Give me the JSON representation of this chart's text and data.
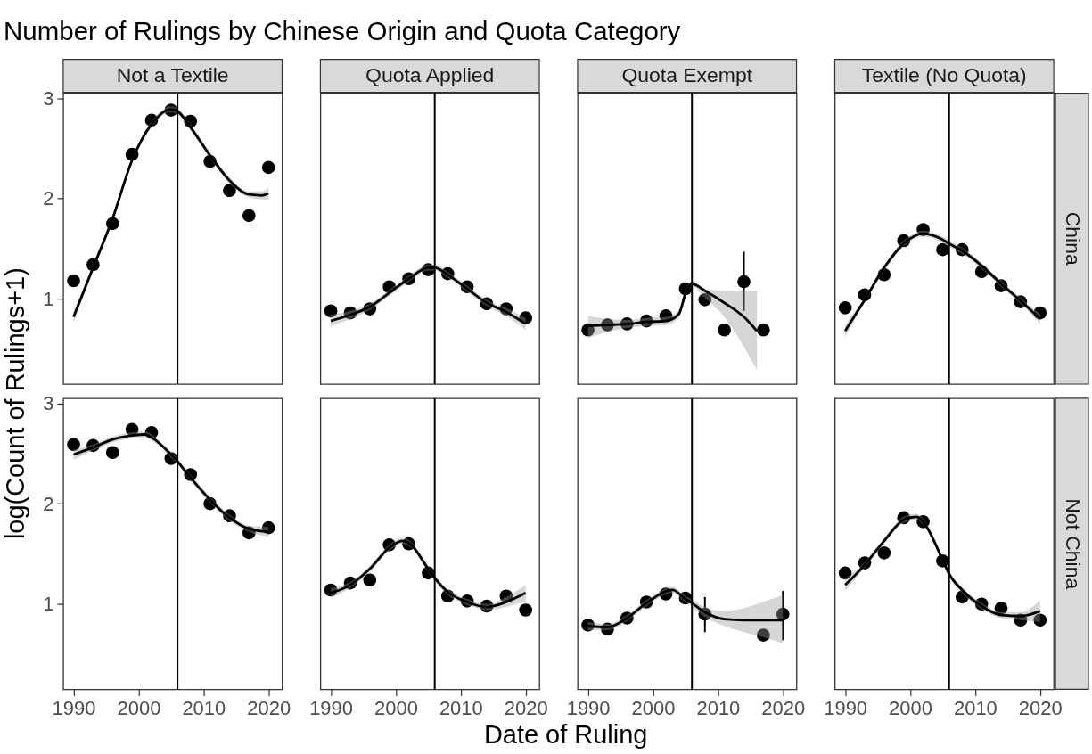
{
  "chart_data": [
    {
      "type": "scatter",
      "title": "Number of Rulings by Chinese Origin and Quota Category",
      "ylabel": "log(Count of Rulings+1)",
      "subtitle": "Not a Textile",
      "xlim": [
        1988.4,
        2022.1
      ],
      "xticks": [
        1990,
        2000,
        2010,
        2020
      ],
      "ylim": [
        0.15,
        3.05
      ],
      "yticks": [
        1,
        2,
        3
      ],
      "tick_labels": "y",
      "ref_lines": [
        {
          "axis": "x",
          "value": 2006,
          "color": "#000000"
        }
      ],
      "series": [
        {
          "type": "scatter",
          "marker": "circle",
          "color": "#000000",
          "x": [
            1990,
            1993,
            1996,
            1999,
            2002,
            2005,
            2008,
            2011,
            2014,
            2017,
            2020
          ],
          "values": [
            1.18,
            1.34,
            1.75,
            2.44,
            2.78,
            2.88,
            2.77,
            2.37,
            2.08,
            1.83,
            2.31
          ]
        },
        {
          "type": "line",
          "marker": "none",
          "color": "#000000",
          "x": [
            1990,
            1993,
            1996,
            1999,
            2002,
            2005,
            2006,
            2008,
            2011,
            2014,
            2017,
            2019,
            2020
          ],
          "values": [
            0.82,
            1.31,
            1.8,
            2.38,
            2.74,
            2.89,
            2.87,
            2.71,
            2.43,
            2.18,
            2.04,
            2.03,
            2.05
          ],
          "lower": [
            0.76,
            1.27,
            1.77,
            2.35,
            2.71,
            2.86,
            2.84,
            2.68,
            2.4,
            2.15,
            2.01,
            1.99,
            1.99
          ],
          "upper": [
            0.88,
            1.35,
            1.83,
            2.41,
            2.77,
            2.92,
            2.9,
            2.74,
            2.46,
            2.21,
            2.07,
            2.07,
            2.11
          ]
        }
      ]
    },
    {
      "type": "scatter",
      "subtitle": "Quota Applied",
      "xlim": [
        1988.4,
        2022.1
      ],
      "xticks": [
        1990,
        2000,
        2010,
        2020
      ],
      "ylim": [
        0.15,
        3.05
      ],
      "yticks": [
        1,
        2,
        3
      ],
      "tick_labels": false,
      "ref_lines": [
        {
          "axis": "x",
          "value": 2006,
          "color": "#000000"
        }
      ],
      "series": [
        {
          "type": "scatter",
          "marker": "circle",
          "color": "#000000",
          "x": [
            1990,
            1993,
            1996,
            1999,
            2002,
            2005,
            2008,
            2011,
            2014,
            2017,
            2020
          ],
          "values": [
            0.88,
            0.86,
            0.9,
            1.12,
            1.2,
            1.29,
            1.25,
            1.12,
            0.95,
            0.9,
            0.81
          ]
        },
        {
          "type": "line",
          "marker": "none",
          "color": "#000000",
          "x": [
            1990,
            1993,
            1996,
            1999,
            2002,
            2005,
            2006,
            2008,
            2011,
            2014,
            2017,
            2020
          ],
          "values": [
            0.78,
            0.84,
            0.92,
            1.06,
            1.2,
            1.31,
            1.31,
            1.24,
            1.1,
            0.96,
            0.87,
            0.75
          ],
          "lower": [
            0.72,
            0.8,
            0.89,
            1.03,
            1.17,
            1.28,
            1.28,
            1.21,
            1.07,
            0.93,
            0.83,
            0.69
          ],
          "upper": [
            0.84,
            0.88,
            0.95,
            1.09,
            1.23,
            1.34,
            1.34,
            1.27,
            1.13,
            0.99,
            0.91,
            0.81
          ]
        }
      ]
    },
    {
      "type": "scatter",
      "subtitle": "Quota Exempt",
      "xlim": [
        1988.4,
        2022.1
      ],
      "xticks": [
        1990,
        2000,
        2010,
        2020
      ],
      "ylim": [
        0.15,
        3.05
      ],
      "yticks": [
        1,
        2,
        3
      ],
      "tick_labels": false,
      "ref_lines": [
        {
          "axis": "x",
          "value": 2006,
          "color": "#000000"
        }
      ],
      "series": [
        {
          "type": "scatter",
          "marker": "circle",
          "color": "#000000",
          "x": [
            1990,
            1993,
            1996,
            1999,
            2002,
            2005,
            2008,
            2011,
            2014,
            2017
          ],
          "values": [
            0.69,
            0.74,
            0.75,
            0.78,
            0.83,
            1.1,
            0.99,
            0.69,
            1.17,
            0.69
          ],
          "errors": [
            null,
            null,
            null,
            null,
            null,
            null,
            null,
            null,
            [
              0.88,
              1.47
            ],
            null
          ]
        },
        {
          "type": "line",
          "marker": "none",
          "color": "#000000",
          "x": [
            1990,
            1993,
            1996,
            1999,
            2002,
            2004,
            2005,
            2006,
            2008,
            2011,
            2014,
            2016
          ],
          "values": [
            0.73,
            0.74,
            0.75,
            0.77,
            0.78,
            0.85,
            1.05,
            1.15,
            1.08,
            0.96,
            0.82,
            0.68
          ],
          "lower": [
            0.61,
            0.67,
            0.71,
            0.73,
            0.74,
            0.81,
            1.01,
            1.12,
            1.01,
            0.82,
            0.52,
            0.29
          ],
          "upper": [
            0.83,
            0.8,
            0.79,
            0.81,
            0.82,
            0.89,
            1.09,
            1.18,
            1.1,
            1.08,
            1.08,
            1.08
          ]
        }
      ]
    },
    {
      "type": "scatter",
      "subtitle": "Textile (No Quota)",
      "y2label": "China",
      "xlim": [
        1988.4,
        2022.1
      ],
      "xticks": [
        1990,
        2000,
        2010,
        2020
      ],
      "ylim": [
        0.15,
        3.05
      ],
      "yticks": [
        1,
        2,
        3
      ],
      "tick_labels": false,
      "ref_lines": [
        {
          "axis": "x",
          "value": 2006,
          "color": "#000000"
        }
      ],
      "series": [
        {
          "type": "scatter",
          "marker": "circle",
          "color": "#000000",
          "x": [
            1990,
            1993,
            1996,
            1999,
            2002,
            2005,
            2008,
            2011,
            2014,
            2017,
            2020
          ],
          "values": [
            0.91,
            1.04,
            1.24,
            1.58,
            1.69,
            1.49,
            1.49,
            1.27,
            1.13,
            0.97,
            0.86
          ]
        },
        {
          "type": "line",
          "marker": "none",
          "color": "#000000",
          "x": [
            1990,
            1993,
            1996,
            1999,
            2002,
            2005,
            2006,
            2008,
            2011,
            2014,
            2017,
            2020
          ],
          "values": [
            0.68,
            0.99,
            1.31,
            1.55,
            1.65,
            1.59,
            1.55,
            1.48,
            1.33,
            1.15,
            0.98,
            0.8
          ],
          "lower": [
            0.62,
            0.96,
            1.28,
            1.52,
            1.62,
            1.56,
            1.52,
            1.45,
            1.3,
            1.12,
            0.95,
            0.75
          ],
          "upper": [
            0.74,
            1.02,
            1.34,
            1.58,
            1.68,
            1.62,
            1.58,
            1.51,
            1.36,
            1.18,
            1.01,
            0.85
          ]
        }
      ]
    },
    {
      "type": "scatter",
      "xlim": [
        1988.4,
        2022.1
      ],
      "xticks": [
        1990,
        2000,
        2010,
        2020
      ],
      "ylim": [
        0.15,
        3.05
      ],
      "yticks": [
        1,
        2,
        3
      ],
      "ref_lines": [
        {
          "axis": "x",
          "value": 2006,
          "color": "#000000"
        }
      ],
      "series": [
        {
          "type": "scatter",
          "marker": "circle",
          "color": "#000000",
          "x": [
            1990,
            1993,
            1996,
            1999,
            2002,
            2005,
            2008,
            2011,
            2014,
            2017,
            2020
          ],
          "values": [
            2.59,
            2.58,
            2.51,
            2.74,
            2.71,
            2.45,
            2.29,
            2.0,
            1.88,
            1.71,
            1.76
          ]
        },
        {
          "type": "line",
          "marker": "none",
          "color": "#000000",
          "x": [
            1990,
            1993,
            1996,
            1999,
            2001,
            2002,
            2005,
            2006,
            2008,
            2011,
            2014,
            2017,
            2020
          ],
          "values": [
            2.49,
            2.56,
            2.64,
            2.68,
            2.69,
            2.66,
            2.49,
            2.42,
            2.26,
            2.04,
            1.86,
            1.75,
            1.72
          ],
          "lower": [
            2.44,
            2.53,
            2.61,
            2.65,
            2.66,
            2.63,
            2.46,
            2.39,
            2.23,
            2.01,
            1.83,
            1.72,
            1.67
          ],
          "upper": [
            2.54,
            2.59,
            2.67,
            2.71,
            2.72,
            2.69,
            2.52,
            2.45,
            2.29,
            2.07,
            1.89,
            1.78,
            1.77
          ]
        }
      ]
    },
    {
      "type": "scatter",
      "xlim": [
        1988.4,
        2022.1
      ],
      "xticks": [
        1990,
        2000,
        2010,
        2020
      ],
      "ylim": [
        0.15,
        3.05
      ],
      "yticks": [
        1,
        2,
        3
      ],
      "tick_labels": "x",
      "ref_lines": [
        {
          "axis": "x",
          "value": 2006,
          "color": "#000000"
        }
      ],
      "series": [
        {
          "type": "scatter",
          "marker": "circle",
          "color": "#000000",
          "x": [
            1990,
            1993,
            1996,
            1999,
            2002,
            2005,
            2008,
            2011,
            2014,
            2017,
            2020
          ],
          "values": [
            1.14,
            1.21,
            1.24,
            1.59,
            1.6,
            1.31,
            1.08,
            1.03,
            0.98,
            1.08,
            0.94
          ]
        },
        {
          "type": "line",
          "marker": "none",
          "color": "#000000",
          "x": [
            1990,
            1993,
            1996,
            1999,
            2001,
            2002,
            2005,
            2006,
            2008,
            2011,
            2014,
            2017,
            2020
          ],
          "values": [
            1.11,
            1.19,
            1.35,
            1.56,
            1.63,
            1.61,
            1.35,
            1.26,
            1.12,
            1.02,
            0.97,
            1.02,
            1.11
          ],
          "lower": [
            1.06,
            1.16,
            1.32,
            1.53,
            1.6,
            1.58,
            1.32,
            1.23,
            1.09,
            0.99,
            0.94,
            0.97,
            1.03
          ],
          "upper": [
            1.16,
            1.22,
            1.38,
            1.59,
            1.66,
            1.64,
            1.38,
            1.29,
            1.15,
            1.05,
            1.0,
            1.07,
            1.19
          ]
        }
      ]
    },
    {
      "type": "scatter",
      "xlabel": "Date of Ruling",
      "xlim": [
        1988.4,
        2022.1
      ],
      "xticks": [
        1990,
        2000,
        2010,
        2020
      ],
      "ylim": [
        0.15,
        3.05
      ],
      "yticks": [
        1,
        2,
        3
      ],
      "tick_labels": "x",
      "ref_lines": [
        {
          "axis": "x",
          "value": 2006,
          "color": "#000000"
        }
      ],
      "series": [
        {
          "type": "scatter",
          "marker": "circle",
          "color": "#000000",
          "x": [
            1990,
            1993,
            1996,
            1999,
            2002,
            2005,
            2008,
            2017,
            2020
          ],
          "values": [
            0.79,
            0.75,
            0.86,
            1.02,
            1.1,
            1.06,
            0.9,
            0.69,
            0.9
          ],
          "errors": [
            null,
            null,
            null,
            null,
            null,
            null,
            [
              0.72,
              1.07
            ],
            null,
            [
              0.64,
              1.13
            ]
          ]
        },
        {
          "type": "line",
          "marker": "none",
          "color": "#000000",
          "x": [
            1990,
            1993,
            1996,
            1999,
            2003,
            2005,
            2006,
            2008,
            2011,
            2014,
            2017,
            2020
          ],
          "values": [
            0.78,
            0.77,
            0.86,
            1.01,
            1.14,
            1.05,
            1.01,
            0.92,
            0.85,
            0.84,
            0.84,
            0.84
          ],
          "lower": [
            0.74,
            0.74,
            0.83,
            0.98,
            1.11,
            1.02,
            0.97,
            0.87,
            0.78,
            0.72,
            0.67,
            0.61
          ],
          "upper": [
            0.82,
            0.8,
            0.89,
            1.04,
            1.17,
            1.08,
            1.05,
            0.97,
            0.93,
            0.96,
            1.02,
            1.09
          ]
        }
      ]
    },
    {
      "type": "scatter",
      "y2label": "Not China",
      "xlim": [
        1988.4,
        2022.1
      ],
      "xticks": [
        1990,
        2000,
        2010,
        2020
      ],
      "ylim": [
        0.15,
        3.05
      ],
      "yticks": [
        1,
        2,
        3
      ],
      "tick_labels": "x",
      "ref_lines": [
        {
          "axis": "x",
          "value": 2006,
          "color": "#000000"
        }
      ],
      "series": [
        {
          "type": "scatter",
          "marker": "circle",
          "color": "#000000",
          "x": [
            1990,
            1993,
            1996,
            1999,
            2002,
            2005,
            2008,
            2011,
            2014,
            2017,
            2020
          ],
          "values": [
            1.31,
            1.41,
            1.51,
            1.86,
            1.82,
            1.43,
            1.07,
            1.0,
            0.96,
            0.84,
            0.84
          ]
        },
        {
          "type": "line",
          "marker": "none",
          "color": "#000000",
          "x": [
            1990,
            1993,
            1996,
            1999,
            2001,
            2002,
            2005,
            2006,
            2008,
            2011,
            2014,
            2017,
            2020
          ],
          "values": [
            1.19,
            1.39,
            1.63,
            1.84,
            1.87,
            1.82,
            1.44,
            1.3,
            1.14,
            0.98,
            0.89,
            0.88,
            0.93
          ],
          "lower": [
            1.13,
            1.36,
            1.6,
            1.81,
            1.84,
            1.79,
            1.41,
            1.27,
            1.11,
            0.95,
            0.86,
            0.84,
            0.82
          ],
          "upper": [
            1.25,
            1.42,
            1.66,
            1.87,
            1.9,
            1.85,
            1.47,
            1.33,
            1.17,
            1.01,
            0.92,
            0.92,
            1.04
          ]
        }
      ]
    }
  ]
}
